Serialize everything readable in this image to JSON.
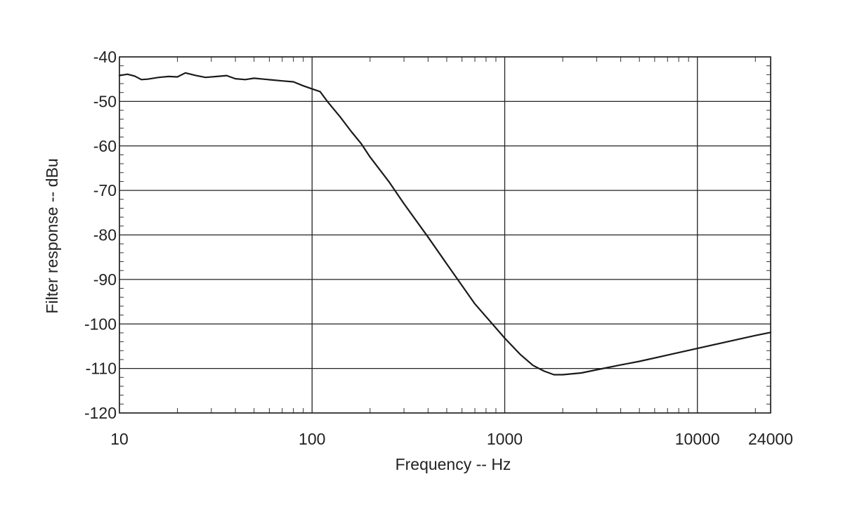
{
  "chart_data": {
    "type": "line",
    "title": "",
    "xlabel": "Frequency -- Hz",
    "ylabel": "Filter response -- dBu",
    "x_scale": "log",
    "xlim": [
      10,
      24000
    ],
    "ylim": [
      -120,
      -40
    ],
    "grid": true,
    "legend": "none",
    "x_ticks": [
      10,
      100,
      1000,
      10000,
      24000
    ],
    "x_tick_labels": [
      "10",
      "100",
      "1000",
      "10000",
      "24000"
    ],
    "y_ticks": [
      -40,
      -50,
      -60,
      -70,
      -80,
      -90,
      -100,
      -110,
      -120
    ],
    "y_tick_labels": [
      "-40",
      "-50",
      "-60",
      "-70",
      "-80",
      "-90",
      "-100",
      "-110",
      "-120"
    ],
    "line_color": "#1a1a1a",
    "series": [
      {
        "x": [
          10,
          11,
          12,
          13,
          14,
          16,
          18,
          20,
          22,
          25,
          28,
          32,
          36,
          40,
          45,
          50,
          56,
          63,
          70,
          80,
          90,
          100,
          110,
          120,
          140,
          160,
          180,
          200,
          250,
          300,
          400,
          500,
          700,
          1000,
          1200,
          1400,
          1600,
          1800,
          2000,
          2500,
          3000,
          4000,
          5000,
          7000,
          10000,
          15000,
          20000,
          24000
        ],
        "y": [
          -44.2,
          -43.9,
          -44.3,
          -45.1,
          -45.0,
          -44.6,
          -44.4,
          -44.5,
          -43.6,
          -44.2,
          -44.6,
          -44.4,
          -44.2,
          -44.9,
          -45.1,
          -44.8,
          -45.0,
          -45.2,
          -45.4,
          -45.6,
          -46.5,
          -47.2,
          -47.8,
          -50.0,
          -53.5,
          -56.8,
          -59.5,
          -62.5,
          -68.0,
          -73.0,
          -80.5,
          -86.5,
          -95.5,
          -103.2,
          -106.8,
          -109.3,
          -110.6,
          -111.4,
          -111.4,
          -111.0,
          -110.3,
          -109.2,
          -108.4,
          -107.0,
          -105.5,
          -103.8,
          -102.6,
          -101.9
        ]
      }
    ]
  }
}
